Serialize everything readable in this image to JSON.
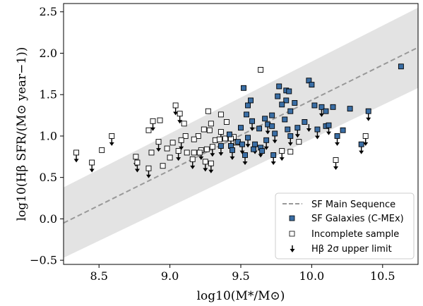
{
  "chart_data": {
    "type": "scatter",
    "xlabel": "log10(M*/M⊙)",
    "ylabel": "log10(Hβ SFR/(M⊙ year−1))",
    "xlim": [
      8.25,
      10.75
    ],
    "ylim": [
      -0.55,
      2.6
    ],
    "xticks": [
      "8.5",
      "9.0",
      "9.5",
      "10.0",
      "10.5"
    ],
    "xtick_values": [
      8.5,
      9.0,
      9.5,
      10.0,
      10.5
    ],
    "yticks": [
      "−0.5",
      "0.0",
      "0.5",
      "1.0",
      "1.5",
      "2.0",
      "2.5"
    ],
    "ytick_values": [
      -0.5,
      0.0,
      0.5,
      1.0,
      1.5,
      2.0,
      2.5
    ],
    "grid": false,
    "legend_position": "lower-right",
    "main_sequence": {
      "name": "SF Main Sequence",
      "line": [
        [
          8.25,
          -0.05
        ],
        [
          10.75,
          2.07
        ]
      ],
      "band_upper": [
        [
          8.25,
          0.38
        ],
        [
          10.75,
          2.55
        ]
      ],
      "band_lower": [
        [
          8.25,
          -0.47
        ],
        [
          10.75,
          1.58
        ]
      ],
      "line_color": "#999999",
      "band_color": "#e3e3e3"
    },
    "series": [
      {
        "name": "SF Galaxies (C-MEx)",
        "marker": "filled-square",
        "color": "#3a6ea5",
        "points": [
          [
            10.63,
            1.84
          ],
          [
            9.98,
            1.67
          ],
          [
            10.0,
            1.62
          ],
          [
            9.77,
            1.6
          ],
          [
            9.52,
            1.58
          ],
          [
            9.82,
            1.55
          ],
          [
            9.84,
            1.54
          ],
          [
            9.76,
            1.48
          ],
          [
            9.57,
            1.43
          ],
          [
            9.82,
            1.43
          ],
          [
            9.88,
            1.4
          ],
          [
            9.79,
            1.38
          ],
          [
            9.55,
            1.37
          ],
          [
            10.02,
            1.37
          ],
          [
            10.15,
            1.35
          ],
          [
            10.07,
            1.35
          ],
          [
            10.27,
            1.33
          ],
          [
            10.1,
            1.3
          ],
          [
            10.4,
            1.3
          ],
          [
            9.85,
            1.3
          ],
          [
            9.54,
            1.26
          ],
          [
            9.72,
            1.25
          ],
          [
            9.67,
            1.21
          ],
          [
            9.81,
            1.2
          ],
          [
            9.58,
            1.18
          ],
          [
            9.95,
            1.17
          ],
          [
            9.69,
            1.14
          ],
          [
            9.72,
            1.12
          ],
          [
            10.1,
            1.12
          ],
          [
            10.12,
            1.13
          ],
          [
            9.9,
            1.1
          ],
          [
            9.5,
            1.1
          ],
          [
            9.63,
            1.09
          ],
          [
            9.83,
            1.08
          ],
          [
            10.04,
            1.08
          ],
          [
            10.22,
            1.07
          ],
          [
            9.74,
            1.03
          ],
          [
            9.42,
            1.02
          ],
          [
            9.85,
            1.0
          ],
          [
            10.18,
            1.0
          ],
          [
            9.55,
            0.98
          ],
          [
            9.68,
            0.95
          ],
          [
            9.48,
            0.93
          ],
          [
            9.51,
            0.9
          ],
          [
            9.6,
            0.9
          ],
          [
            9.43,
            0.88
          ],
          [
            9.36,
            0.88
          ],
          [
            9.64,
            0.86
          ],
          [
            9.59,
            0.84
          ],
          [
            9.65,
            0.82
          ],
          [
            10.35,
            0.9
          ],
          [
            9.73,
            0.77
          ],
          [
            9.53,
            0.77
          ],
          [
            9.44,
            0.83
          ]
        ]
      },
      {
        "name": "Incomplete sample",
        "marker": "open-square",
        "color": "#000000",
        "points": [
          [
            9.64,
            1.8
          ],
          [
            9.04,
            1.37
          ],
          [
            9.07,
            1.27
          ],
          [
            8.88,
            1.18
          ],
          [
            8.93,
            1.19
          ],
          [
            9.27,
            1.3
          ],
          [
            9.36,
            1.26
          ],
          [
            9.1,
            1.15
          ],
          [
            9.29,
            1.15
          ],
          [
            9.4,
            1.17
          ],
          [
            8.85,
            1.07
          ],
          [
            9.24,
            1.08
          ],
          [
            9.28,
            1.07
          ],
          [
            9.36,
            1.05
          ],
          [
            8.59,
            1.0
          ],
          [
            9.11,
            1.0
          ],
          [
            9.2,
            1.0
          ],
          [
            9.45,
            0.99
          ],
          [
            9.08,
            0.95
          ],
          [
            9.17,
            0.96
          ],
          [
            8.34,
            0.8
          ],
          [
            8.52,
            0.83
          ],
          [
            8.76,
            0.75
          ],
          [
            8.87,
            0.8
          ],
          [
            8.92,
            0.93
          ],
          [
            8.98,
            0.85
          ],
          [
            9.02,
            0.92
          ],
          [
            9.06,
            0.82
          ],
          [
            9.12,
            0.8
          ],
          [
            9.17,
            0.8
          ],
          [
            9.22,
            0.83
          ],
          [
            9.26,
            0.84
          ],
          [
            9.3,
            0.87
          ],
          [
            9.32,
            0.95
          ],
          [
            9.35,
            0.96
          ],
          [
            9.39,
            0.97
          ],
          [
            9.43,
            0.97
          ],
          [
            9.47,
            0.92
          ],
          [
            9.79,
            0.82
          ],
          [
            9.85,
            0.81
          ],
          [
            9.0,
            0.74
          ],
          [
            8.95,
            0.64
          ],
          [
            8.77,
            0.68
          ],
          [
            8.45,
            0.68
          ],
          [
            8.85,
            0.61
          ],
          [
            9.16,
            0.72
          ],
          [
            9.25,
            0.69
          ],
          [
            9.29,
            0.67
          ],
          [
            9.21,
            0.8
          ],
          [
            10.17,
            0.71
          ],
          [
            10.38,
            1.0
          ],
          [
            9.91,
            0.93
          ]
        ]
      },
      {
        "name": "Hβ 2σ upper limit",
        "marker": "down-arrow",
        "color": "#000000",
        "points": [
          [
            8.34,
            0.8
          ],
          [
            8.45,
            0.68
          ],
          [
            8.59,
            1.0
          ],
          [
            8.76,
            0.75
          ],
          [
            8.77,
            0.68
          ],
          [
            8.85,
            0.61
          ],
          [
            8.88,
            1.18
          ],
          [
            8.92,
            0.93
          ],
          [
            9.04,
            1.37
          ],
          [
            9.07,
            1.27
          ],
          [
            9.06,
            0.82
          ],
          [
            9.08,
            0.95
          ],
          [
            9.16,
            0.72
          ],
          [
            9.22,
            0.83
          ],
          [
            9.25,
            0.69
          ],
          [
            9.29,
            0.67
          ],
          [
            9.3,
            0.87
          ],
          [
            9.36,
            1.05
          ],
          [
            9.43,
            0.97
          ],
          [
            9.36,
            0.88
          ],
          [
            9.44,
            0.83
          ],
          [
            9.51,
            0.9
          ],
          [
            9.53,
            0.77
          ],
          [
            9.55,
            0.98
          ],
          [
            9.6,
            0.9
          ],
          [
            9.64,
            0.86
          ],
          [
            9.68,
            0.95
          ],
          [
            9.73,
            0.77
          ],
          [
            9.74,
            1.03
          ],
          [
            9.79,
            0.82
          ],
          [
            9.85,
            1.0
          ],
          [
            9.9,
            1.1
          ],
          [
            9.98,
            1.17
          ],
          [
            10.04,
            1.08
          ],
          [
            10.07,
            1.35
          ],
          [
            10.12,
            1.13
          ],
          [
            10.17,
            0.71
          ],
          [
            10.18,
            1.0
          ],
          [
            10.35,
            0.9
          ],
          [
            10.38,
            1.0
          ],
          [
            10.4,
            1.3
          ],
          [
            9.58,
            1.18
          ],
          [
            9.69,
            1.14
          ]
        ]
      }
    ],
    "legend": [
      {
        "label": "SF Main Sequence",
        "symbol": "dashed-line"
      },
      {
        "label": "SF Galaxies (C-MEx)",
        "symbol": "filled-square"
      },
      {
        "label": "Incomplete sample",
        "symbol": "open-square"
      },
      {
        "label": "Hβ 2σ upper limit",
        "symbol": "down-arrow"
      }
    ]
  }
}
